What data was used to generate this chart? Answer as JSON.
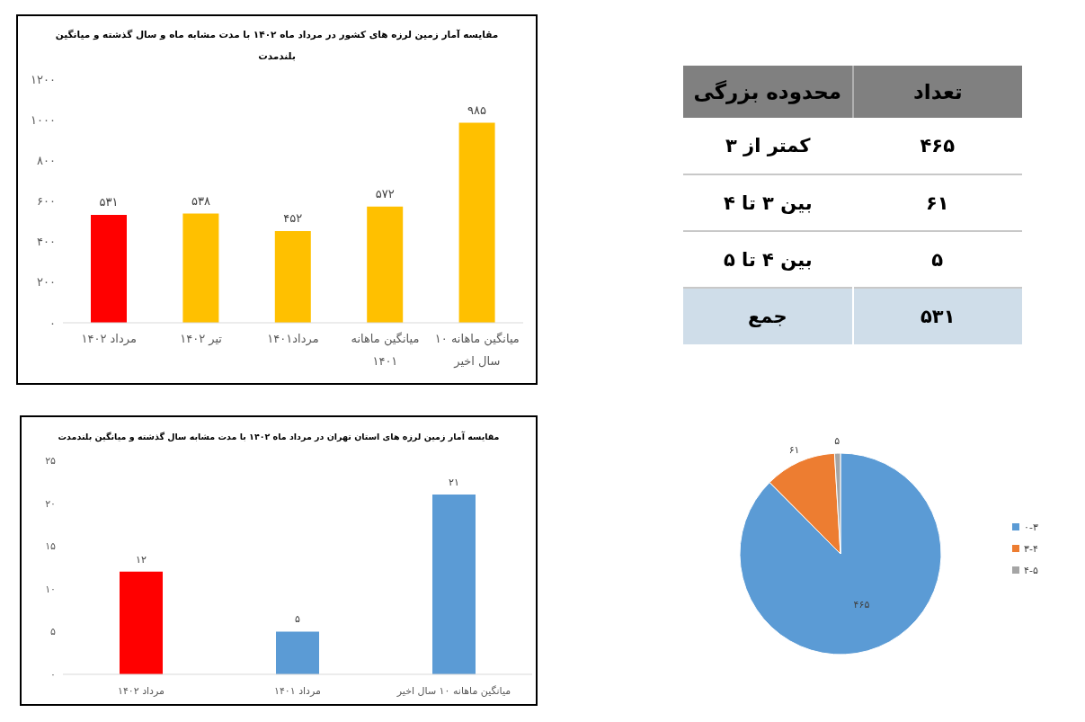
{
  "chart_data": [
    {
      "type": "bar",
      "title": "مقایسه آمار زمین لرزه های کشور در مرداد ماه ۱۴۰۲ با مدت مشابه ماه و سال گذشته و میانگین بلندمدت",
      "categories": [
        "مرداد ۱۴۰۲",
        "تیر ۱۴۰۲",
        "مرداد۱۴۰۱",
        "میانگین ماهانه ۱۴۰۱",
        "میانگین ماهانه ۱۰ سال اخیر"
      ],
      "values": [
        531,
        538,
        452,
        572,
        985
      ],
      "colors": [
        "#ff0000",
        "#ffc000",
        "#ffc000",
        "#ffc000",
        "#ffc000"
      ],
      "value_labels": [
        "۵۳۱",
        "۵۳۸",
        "۴۵۲",
        "۵۷۲",
        "۹۸۵"
      ],
      "ylim": [
        0,
        1200
      ],
      "yticks": [
        {
          "value": 0,
          "label": "۰"
        },
        {
          "value": 200,
          "label": "۲۰۰"
        },
        {
          "value": 400,
          "label": "۴۰۰"
        },
        {
          "value": 600,
          "label": "۶۰۰"
        },
        {
          "value": 800,
          "label": "۸۰۰"
        },
        {
          "value": 1000,
          "label": "۱۰۰۰"
        },
        {
          "value": 1200,
          "label": "۱۲۰۰"
        }
      ],
      "grid": false
    },
    {
      "type": "other",
      "annotations": [
        "تعداد",
        "محدوده بزرگی",
        "۴۶۵",
        "کمتر از ۳",
        "۶۱",
        "بین ۳ تا ۴",
        "۵",
        "بین ۴ تا ۵",
        "۵۳۱",
        "جمع"
      ]
    },
    {
      "type": "bar",
      "title": "مقایسه آمار زمین لرزه های استان تهران در مرداد ماه ۱۴۰۲ با مدت مشابه سال گذشته و میانگین بلندمدت",
      "categories": [
        "مرداد ۱۴۰۲",
        "مرداد ۱۴۰۱",
        "میانگین ماهانه ۱۰ سال اخیر"
      ],
      "values": [
        12,
        5,
        21
      ],
      "colors": [
        "#ff0000",
        "#5b9bd5",
        "#5b9bd5"
      ],
      "value_labels": [
        "۱۲",
        "۵",
        "۲۱"
      ],
      "ylim": [
        0,
        25
      ],
      "yticks": [
        {
          "value": 0,
          "label": "۰"
        },
        {
          "value": 5,
          "label": "۵"
        },
        {
          "value": 10,
          "label": "۱۰"
        },
        {
          "value": 15,
          "label": "۱۵"
        },
        {
          "value": 20,
          "label": "۲۰"
        },
        {
          "value": 25,
          "label": "۲۵"
        }
      ],
      "grid": false
    },
    {
      "type": "pie",
      "categories": [
        "۰-۳",
        "۳-۴",
        "۴-۵"
      ],
      "values": [
        465,
        61,
        5
      ],
      "colors": [
        "#5b9bd5",
        "#ed7d31",
        "#a5a5a5"
      ],
      "value_labels": [
        "۴۶۵",
        "۶۱",
        "۵"
      ],
      "legend": "right"
    }
  ]
}
